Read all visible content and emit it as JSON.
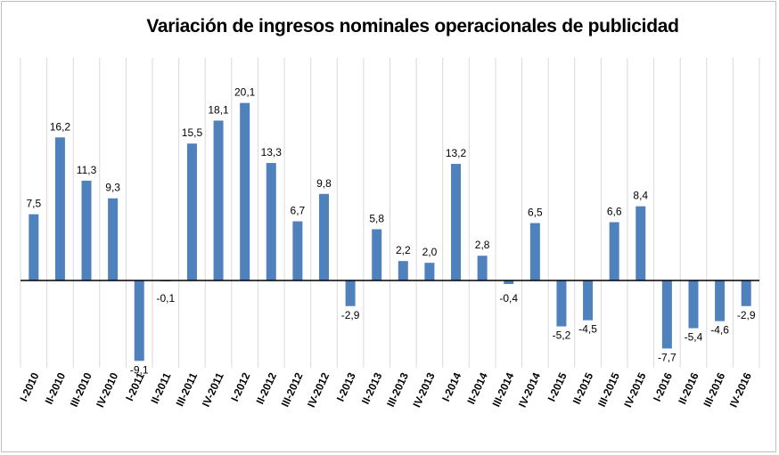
{
  "chart_data": {
    "type": "bar",
    "title": "Variación de ingresos nominales operacionales de publicidad",
    "xlabel": "",
    "ylabel": "",
    "ylim": [
      -10.5,
      23
    ],
    "grid": "vertical",
    "colors": {
      "bar": "#4f81bd",
      "grid": "#d9d9d9",
      "axis": "#000000"
    },
    "categories": [
      "I-2010",
      "II-2010",
      "III-2010",
      "IV-2010",
      "I-2011",
      "II-2011",
      "III-2011",
      "IV-2011",
      "I-2012",
      "II-2012",
      "III-2012",
      "IV-2012",
      "I-2013",
      "II-2013",
      "III-2013",
      "IV-2013",
      "I-2014",
      "II-2014",
      "III-2014",
      "IV-2014",
      "I-2015",
      "II-2015",
      "III-2015",
      "IV-2015",
      "I-2016",
      "II-2016",
      "III-2016",
      "IV-2016"
    ],
    "values": [
      7.5,
      16.2,
      11.3,
      9.3,
      -9.1,
      -0.1,
      15.5,
      18.1,
      20.1,
      13.3,
      6.7,
      9.8,
      -2.9,
      5.8,
      2.2,
      2.0,
      13.2,
      2.8,
      -0.4,
      6.5,
      -5.2,
      -4.5,
      6.6,
      8.4,
      -7.7,
      -5.4,
      -4.6,
      -2.9
    ],
    "labels": [
      "7,5",
      "16,2",
      "11,3",
      "9,3",
      "-9,1",
      "-0,1",
      "15,5",
      "18,1",
      "20,1",
      "13,3",
      "6,7",
      "9,8",
      "-2,9",
      "5,8",
      "2,2",
      "2,0",
      "13,2",
      "2,8",
      "-0,4",
      "6,5",
      "-5,2",
      "-4,5",
      "6,6",
      "8,4",
      "-7,7",
      "-5,4",
      "-4,6",
      "-2,9"
    ]
  }
}
